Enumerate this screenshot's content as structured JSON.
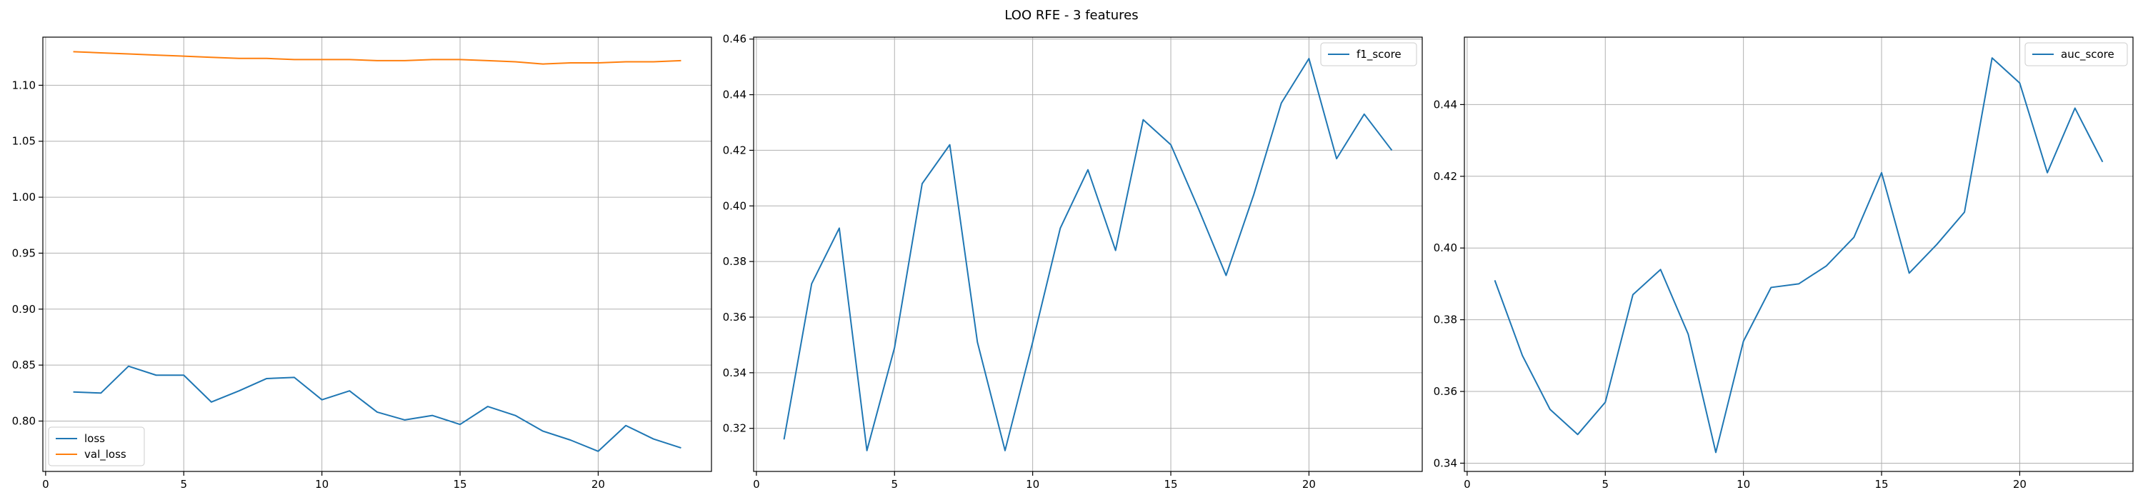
{
  "figure": {
    "title": "LOO RFE - 3 features"
  },
  "colors": {
    "series_blue": "#1f77b4",
    "series_orange": "#ff7f0e",
    "grid": "#b0b0b0",
    "axes": "#000000"
  },
  "chart_data": [
    {
      "type": "line",
      "grid": true,
      "legend": "lower-left",
      "x": [
        1,
        2,
        3,
        4,
        5,
        6,
        7,
        8,
        9,
        10,
        11,
        12,
        13,
        14,
        15,
        16,
        17,
        18,
        19,
        20,
        21,
        22,
        23
      ],
      "xlim": [
        -0.1,
        24.1
      ],
      "ylim": [
        0.755,
        1.143
      ],
      "xticks": [
        0,
        5,
        10,
        15,
        20
      ],
      "xtick_labels": [
        "0",
        "5",
        "10",
        "15",
        "20"
      ],
      "yticks": [
        0.8,
        0.85,
        0.9,
        0.95,
        1.0,
        1.05,
        1.1
      ],
      "ytick_labels": [
        "0.80",
        "0.85",
        "0.90",
        "0.95",
        "1.00",
        "1.05",
        "1.10"
      ],
      "series": [
        {
          "name": "loss",
          "color": "#1f77b4",
          "values": [
            0.826,
            0.825,
            0.849,
            0.841,
            0.841,
            0.817,
            0.827,
            0.838,
            0.839,
            0.819,
            0.827,
            0.808,
            0.801,
            0.805,
            0.797,
            0.813,
            0.805,
            0.791,
            0.783,
            0.773,
            0.796,
            0.784,
            0.776
          ]
        },
        {
          "name": "val_loss",
          "color": "#ff7f0e",
          "values": [
            1.13,
            1.129,
            1.128,
            1.127,
            1.126,
            1.125,
            1.124,
            1.124,
            1.123,
            1.123,
            1.123,
            1.122,
            1.122,
            1.123,
            1.123,
            1.122,
            1.121,
            1.119,
            1.12,
            1.12,
            1.121,
            1.121,
            1.122
          ]
        }
      ]
    },
    {
      "type": "line",
      "grid": true,
      "legend": "top-right",
      "x": [
        1,
        2,
        3,
        4,
        5,
        6,
        7,
        8,
        9,
        10,
        11,
        12,
        13,
        14,
        15,
        16,
        17,
        18,
        19,
        20,
        21,
        22,
        23
      ],
      "xlim": [
        -0.1,
        24.1
      ],
      "ylim": [
        0.3045,
        0.4607
      ],
      "xticks": [
        0,
        5,
        10,
        15,
        20
      ],
      "xtick_labels": [
        "0",
        "5",
        "10",
        "15",
        "20"
      ],
      "yticks": [
        0.32,
        0.34,
        0.36,
        0.38,
        0.4,
        0.42,
        0.44,
        0.46
      ],
      "ytick_labels": [
        "0.32",
        "0.34",
        "0.36",
        "0.38",
        "0.40",
        "0.42",
        "0.44",
        "0.46"
      ],
      "series": [
        {
          "name": "f1_score",
          "color": "#1f77b4",
          "values": [
            0.316,
            0.372,
            0.392,
            0.312,
            0.349,
            0.408,
            0.422,
            0.351,
            0.312,
            0.351,
            0.392,
            0.413,
            0.384,
            0.431,
            0.422,
            0.399,
            0.375,
            0.404,
            0.437,
            0.453,
            0.417,
            0.433,
            0.42
          ]
        }
      ]
    },
    {
      "type": "line",
      "grid": true,
      "legend": "top-right",
      "x": [
        1,
        2,
        3,
        4,
        5,
        6,
        7,
        8,
        9,
        10,
        11,
        12,
        13,
        14,
        15,
        16,
        17,
        18,
        19,
        20,
        21,
        22,
        23
      ],
      "xlim": [
        -0.1,
        24.1
      ],
      "ylim": [
        0.3377,
        0.4588
      ],
      "xticks": [
        0,
        5,
        10,
        15,
        20
      ],
      "xtick_labels": [
        "0",
        "5",
        "10",
        "15",
        "20"
      ],
      "yticks": [
        0.34,
        0.36,
        0.38,
        0.4,
        0.42,
        0.44
      ],
      "ytick_labels": [
        "0.34",
        "0.36",
        "0.38",
        "0.40",
        "0.42",
        "0.44"
      ],
      "series": [
        {
          "name": "auc_score",
          "color": "#1f77b4",
          "values": [
            0.391,
            0.37,
            0.355,
            0.348,
            0.357,
            0.387,
            0.394,
            0.376,
            0.343,
            0.374,
            0.389,
            0.39,
            0.395,
            0.403,
            0.421,
            0.393,
            0.401,
            0.41,
            0.453,
            0.446,
            0.421,
            0.439,
            0.424
          ]
        }
      ]
    }
  ]
}
